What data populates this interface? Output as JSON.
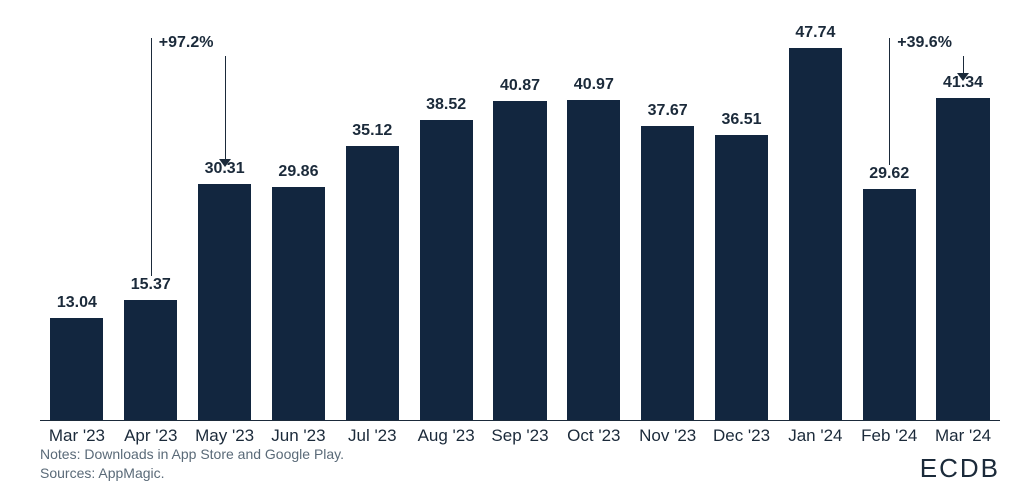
{
  "chart": {
    "type": "bar",
    "background_color": "#ffffff",
    "bar_color": "#12263f",
    "axis_color": "#1b2a3a",
    "label_color": "#1b2a3a",
    "text_color": "#1b2a3a",
    "footer_color": "#5a6a78",
    "label_fontsize": 16,
    "category_fontsize": 17,
    "annotation_fontsize": 16,
    "footer_fontsize": 14,
    "logo_fontsize": 26,
    "ymax": 50,
    "bar_width_ratio": 0.72,
    "categories": [
      "Mar '23",
      "Apr '23",
      "May '23",
      "Jun '23",
      "Jul '23",
      "Aug '23",
      "Sep '23",
      "Oct '23",
      "Nov '23",
      "Dec '23",
      "Jan '24",
      "Feb '24",
      "Mar '24"
    ],
    "values": [
      13.04,
      15.37,
      30.31,
      29.86,
      35.12,
      38.52,
      40.87,
      40.97,
      37.67,
      36.51,
      47.74,
      29.62,
      41.34
    ],
    "value_labels": [
      "13.04",
      "15.37",
      "30.31",
      "29.86",
      "35.12",
      "38.52",
      "40.87",
      "40.97",
      "37.67",
      "36.51",
      "47.74",
      "29.62",
      "41.34"
    ],
    "annotations": [
      {
        "text": "+97.2%",
        "from_index": 1,
        "to_index": 2,
        "line_top_value": 49
      },
      {
        "text": "+39.6%",
        "from_index": 11,
        "to_index": 12,
        "line_top_value": 49
      }
    ],
    "arrow_color": "#1b2a3a",
    "arrow_head_size": 6
  },
  "footer": {
    "notes": "Notes: Downloads in App Store and Google Play.",
    "sources": "Sources: AppMagic."
  },
  "logo": {
    "text": "ECDB"
  }
}
